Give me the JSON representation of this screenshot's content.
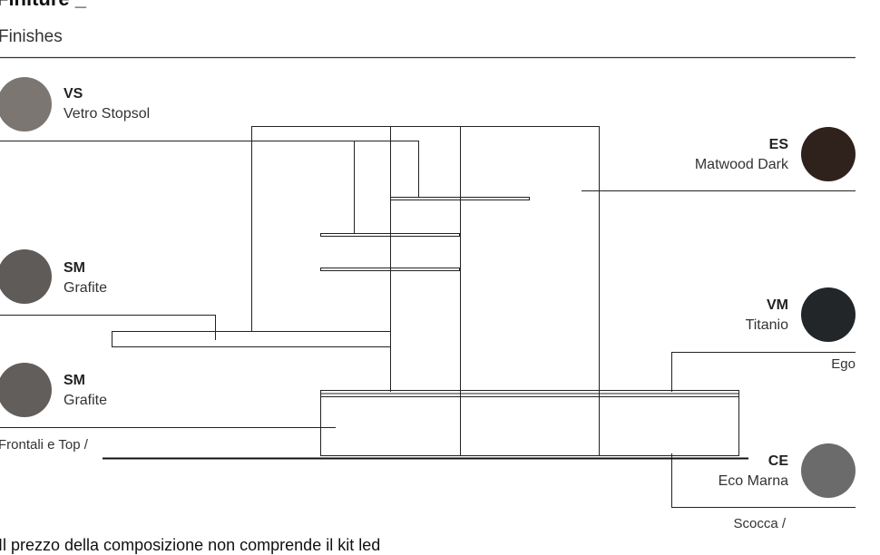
{
  "header": {
    "title": "Finiture _",
    "subtitle": "Finishes"
  },
  "finishes": [
    {
      "code": "VS",
      "name": "Vetro Stopsol",
      "color": "#7b7671"
    },
    {
      "code": "SM",
      "name": "Grafite",
      "color": "#5f5b58"
    },
    {
      "code": "SM",
      "name": "Grafite",
      "color": "#625e5b"
    },
    {
      "code": "ES",
      "name": "Matwood Dark",
      "color": "#2f221d"
    },
    {
      "code": "VM",
      "name": "Titanio",
      "color": "#232628"
    },
    {
      "code": "CE",
      "name": "Eco Marna",
      "color": "#6b6b6b"
    }
  ],
  "notes": {
    "frontali": "Frontali e Top /",
    "ego": "Ego",
    "scocca": "Scocca /"
  },
  "footer": "Il prezzo della composizione non comprende il kit led"
}
